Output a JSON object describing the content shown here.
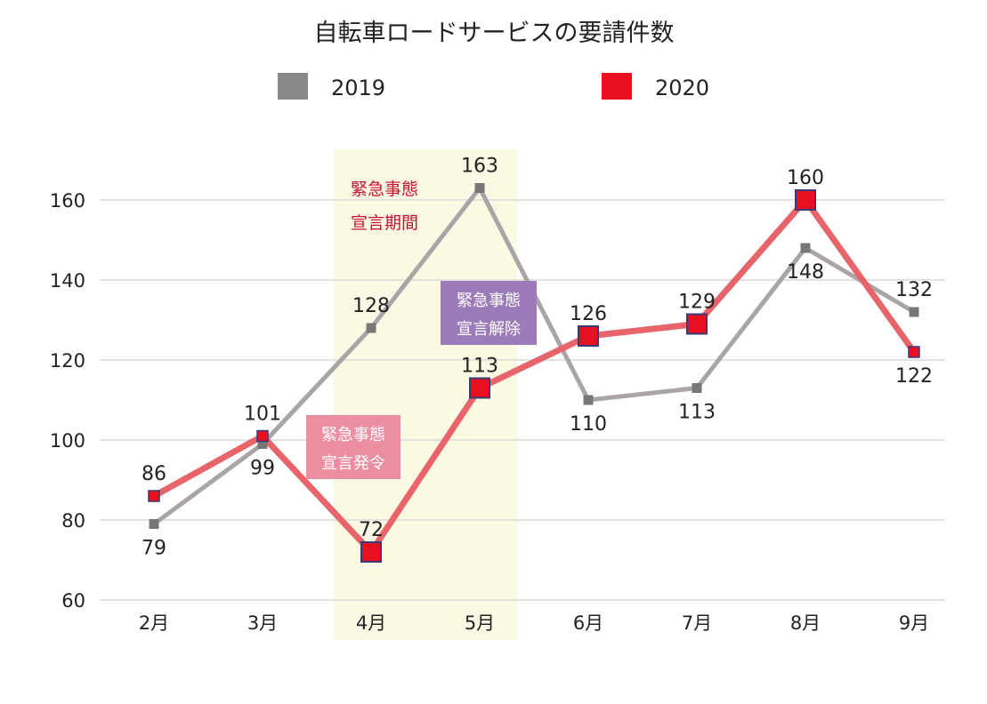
{
  "chart_data": {
    "type": "line",
    "title": "自転車ロードサービスの要請件数",
    "categories": [
      "2月",
      "3月",
      "4月",
      "5月",
      "6月",
      "7月",
      "8月",
      "9月"
    ],
    "series": [
      {
        "name": "2019",
        "color": "#aaa4a6",
        "marker_color": "#777777",
        "values": [
          79,
          99,
          128,
          163,
          110,
          113,
          148,
          132
        ]
      },
      {
        "name": "2020",
        "color": "#e8646b",
        "marker_color": "#e8101e",
        "values": [
          86,
          101,
          72,
          113,
          126,
          129,
          160,
          122
        ]
      }
    ],
    "ylim": [
      60,
      170
    ],
    "yticks": [
      60,
      80,
      100,
      120,
      140,
      160
    ],
    "xlabel": "",
    "ylabel": "",
    "grid": true,
    "legend": "top",
    "highlight_period": {
      "from": "4月",
      "to": "5月",
      "color": "#fbf9e4",
      "label_line1": "緊急事態",
      "label_line2": "宣言期間"
    },
    "annotations": [
      {
        "line1": "緊急事態",
        "line2": "宣言発令",
        "bg": "#ec8da2",
        "fg": "#ffffff"
      },
      {
        "line1": "緊急事態",
        "line2": "宣言解除",
        "bg": "#9b7bb8",
        "fg": "#ffffff"
      }
    ]
  }
}
